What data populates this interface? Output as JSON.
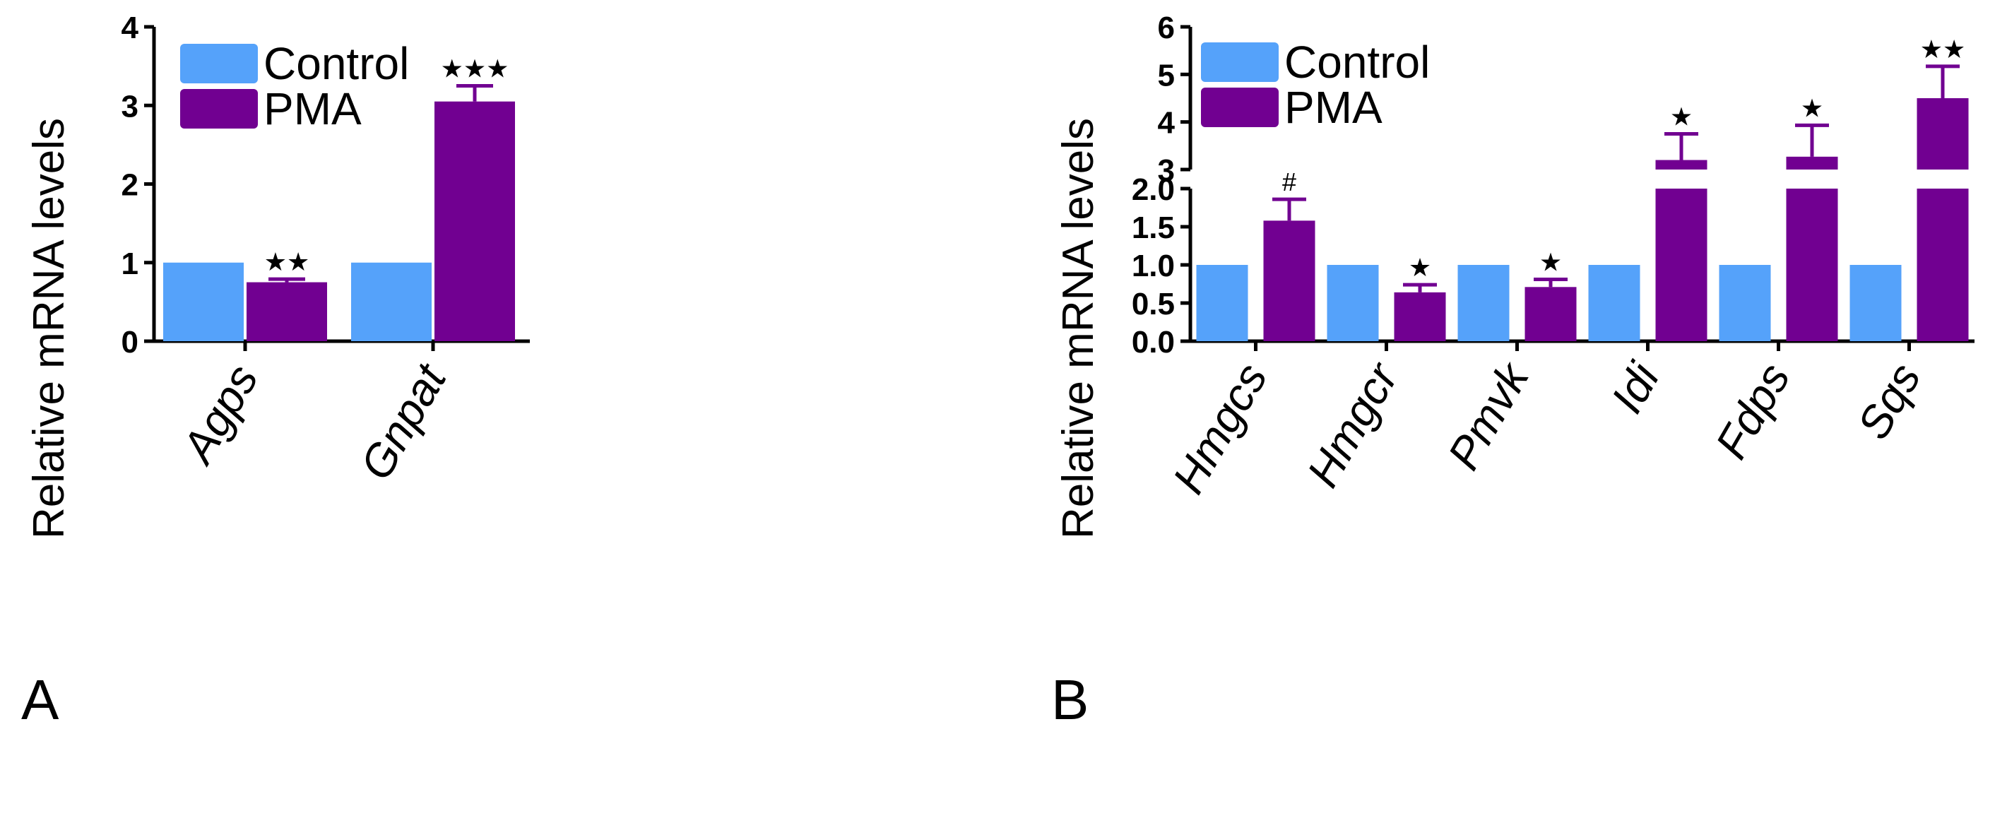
{
  "colors": {
    "control": "#55A2FA",
    "pma": "#710091",
    "axis": "#000000"
  },
  "chart_data": [
    {
      "panel": "A",
      "type": "bar",
      "ylabel": "Relative mRNA levels",
      "ylim": [
        0,
        4
      ],
      "yticks": [
        0,
        1,
        2,
        3,
        4
      ],
      "categories": [
        "Agps",
        "Gnpat"
      ],
      "series": [
        {
          "name": "Control",
          "values": [
            1.0,
            1.0
          ]
        },
        {
          "name": "PMA",
          "values": [
            0.75,
            3.05
          ],
          "errors": [
            0.04,
            0.2
          ]
        }
      ],
      "annotations": [
        "★★",
        "★★★"
      ],
      "legend": [
        "Control",
        "PMA"
      ]
    },
    {
      "panel": "B",
      "type": "bar",
      "ylabel": "Relative mRNA levels",
      "ylim": [
        0,
        6
      ],
      "axis_break": [
        2,
        3
      ],
      "yticks": [
        "0.0",
        "0.5",
        "1.0",
        "1.5",
        "2.0",
        "3",
        "4",
        "5",
        "6"
      ],
      "categories": [
        "Hmgcs",
        "Hmgcr",
        "Pmvk",
        "Idi",
        "Fdps",
        "Sqs"
      ],
      "series": [
        {
          "name": "Control",
          "values": [
            1.0,
            1.0,
            1.0,
            1.0,
            1.0,
            1.0
          ]
        },
        {
          "name": "PMA",
          "values": [
            1.58,
            0.64,
            0.71,
            3.2,
            3.27,
            4.5
          ],
          "errors": [
            0.28,
            0.1,
            0.1,
            0.55,
            0.66,
            0.67
          ]
        }
      ],
      "annotations": [
        "#",
        "★",
        "★",
        "★",
        "★",
        "★★"
      ],
      "legend": [
        "Control",
        "PMA"
      ]
    }
  ]
}
